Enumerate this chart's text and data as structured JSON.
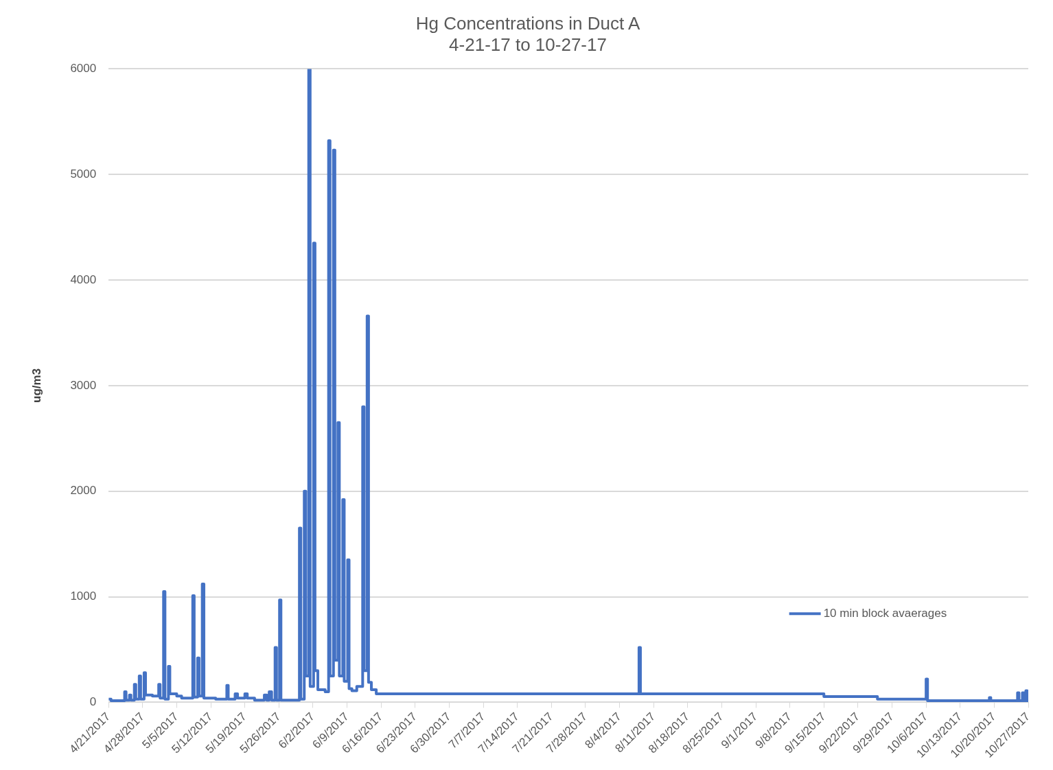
{
  "chart_data": {
    "type": "step",
    "title": "Hg Concentrations in Duct A",
    "subtitle": "4-21-17 to 10-27-17",
    "ylabel": "ug/m3",
    "x": [
      "2017-04-21T00:00",
      "2017-04-21T12:00",
      "2017-04-24T07:00",
      "2017-04-24T14:00",
      "2017-04-25T07:00",
      "2017-04-25T14:00",
      "2017-04-26T07:00",
      "2017-04-26T14:00",
      "2017-04-27T07:00",
      "2017-04-27T14:00",
      "2017-04-28T07:00",
      "2017-04-28T14:00",
      "2017-04-30T00:00",
      "2017-05-01T07:00",
      "2017-05-01T14:00",
      "2017-05-02T07:00",
      "2017-05-02T14:00",
      "2017-05-03T07:00",
      "2017-05-03T14:00",
      "2017-05-05T00:00",
      "2017-05-06T00:00",
      "2017-05-08T07:00",
      "2017-05-08T14:00",
      "2017-05-09T07:00",
      "2017-05-09T14:00",
      "2017-05-10T06:00",
      "2017-05-10T14:00",
      "2017-05-13T00:00",
      "2017-05-15T07:00",
      "2017-05-15T14:00",
      "2017-05-17T00:00",
      "2017-05-17T12:00",
      "2017-05-19T00:00",
      "2017-05-19T12:00",
      "2017-05-21T00:00",
      "2017-05-23T00:00",
      "2017-05-23T12:00",
      "2017-05-24T00:00",
      "2017-05-24T12:00",
      "2017-05-25T05:00",
      "2017-05-25T12:00",
      "2017-05-26T03:00",
      "2017-05-26T10:00",
      "2017-05-30T05:00",
      "2017-05-30T12:00",
      "2017-05-31T05:00",
      "2017-05-31T12:00",
      "2017-06-01T03:00",
      "2017-06-01T10:00",
      "2017-06-02T03:00",
      "2017-06-02T10:00",
      "2017-06-03T00:00",
      "2017-06-04T12:00",
      "2017-06-05T05:00",
      "2017-06-05T12:00",
      "2017-06-06T05:00",
      "2017-06-06T12:00",
      "2017-06-07T03:00",
      "2017-06-07T10:00",
      "2017-06-08T03:00",
      "2017-06-08T10:00",
      "2017-06-09T03:00",
      "2017-06-09T10:00",
      "2017-06-10T00:00",
      "2017-06-11T00:00",
      "2017-06-12T05:00",
      "2017-06-12T12:00",
      "2017-06-13T03:00",
      "2017-06-13T10:00",
      "2017-06-14T00:00",
      "2017-06-15T00:00",
      "2017-08-08T00:00",
      "2017-08-08T07:00",
      "2017-09-15T00:00",
      "2017-09-26T00:00",
      "2017-10-06T00:00",
      "2017-10-06T07:00",
      "2017-10-19T00:00",
      "2017-10-19T07:00",
      "2017-10-24T19:00",
      "2017-10-25T02:00",
      "2017-10-25T19:00",
      "2017-10-26T02:00",
      "2017-10-26T12:00",
      "2017-10-26T18:00",
      "2017-10-27T00:00"
    ],
    "series": [
      {
        "name": "10 min block avaerages",
        "color": "#4472c4",
        "values": [
          30,
          15,
          100,
          20,
          70,
          20,
          170,
          30,
          250,
          30,
          280,
          70,
          60,
          170,
          40,
          1050,
          30,
          340,
          80,
          60,
          40,
          1010,
          50,
          420,
          60,
          1120,
          40,
          30,
          160,
          30,
          80,
          40,
          80,
          40,
          20,
          70,
          20,
          100,
          20,
          520,
          20,
          970,
          20,
          1650,
          30,
          2000,
          250,
          6000,
          150,
          4350,
          300,
          120,
          100,
          5320,
          250,
          5230,
          400,
          2650,
          250,
          1920,
          200,
          1350,
          130,
          110,
          150,
          2800,
          300,
          3660,
          190,
          120,
          80,
          520,
          80,
          55,
          30,
          220,
          15,
          45,
          15,
          90,
          15,
          90,
          15,
          110,
          15,
          15
        ]
      }
    ],
    "xlim": [
      "2017-04-21",
      "2017-10-27"
    ],
    "xticks": [
      {
        "value": "2017-04-21",
        "label": "4/21/2017"
      },
      {
        "value": "2017-04-28",
        "label": "4/28/2017"
      },
      {
        "value": "2017-05-05",
        "label": "5/5/2017"
      },
      {
        "value": "2017-05-12",
        "label": "5/12/2017"
      },
      {
        "value": "2017-05-19",
        "label": "5/19/2017"
      },
      {
        "value": "2017-05-26",
        "label": "5/26/2017"
      },
      {
        "value": "2017-06-02",
        "label": "6/2/2017"
      },
      {
        "value": "2017-06-09",
        "label": "6/9/2017"
      },
      {
        "value": "2017-06-16",
        "label": "6/16/2017"
      },
      {
        "value": "2017-06-23",
        "label": "6/23/2017"
      },
      {
        "value": "2017-06-30",
        "label": "6/30/2017"
      },
      {
        "value": "2017-07-07",
        "label": "7/7/2017"
      },
      {
        "value": "2017-07-14",
        "label": "7/14/2017"
      },
      {
        "value": "2017-07-21",
        "label": "7/21/2017"
      },
      {
        "value": "2017-07-28",
        "label": "7/28/2017"
      },
      {
        "value": "2017-08-04",
        "label": "8/4/2017"
      },
      {
        "value": "2017-08-11",
        "label": "8/11/2017"
      },
      {
        "value": "2017-08-18",
        "label": "8/18/2017"
      },
      {
        "value": "2017-08-25",
        "label": "8/25/2017"
      },
      {
        "value": "2017-09-01",
        "label": "9/1/2017"
      },
      {
        "value": "2017-09-08",
        "label": "9/8/2017"
      },
      {
        "value": "2017-09-15",
        "label": "9/15/2017"
      },
      {
        "value": "2017-09-22",
        "label": "9/22/2017"
      },
      {
        "value": "2017-09-29",
        "label": "9/29/2017"
      },
      {
        "value": "2017-10-06",
        "label": "10/6/2017"
      },
      {
        "value": "2017-10-13",
        "label": "10/13/2017"
      },
      {
        "value": "2017-10-20",
        "label": "10/20/2017"
      },
      {
        "value": "2017-10-27",
        "label": "10/27/2017"
      }
    ],
    "ylim": [
      0,
      6000
    ],
    "yticks": [
      0,
      1000,
      2000,
      3000,
      4000,
      5000,
      6000
    ],
    "grid": "y",
    "legend": "right"
  }
}
